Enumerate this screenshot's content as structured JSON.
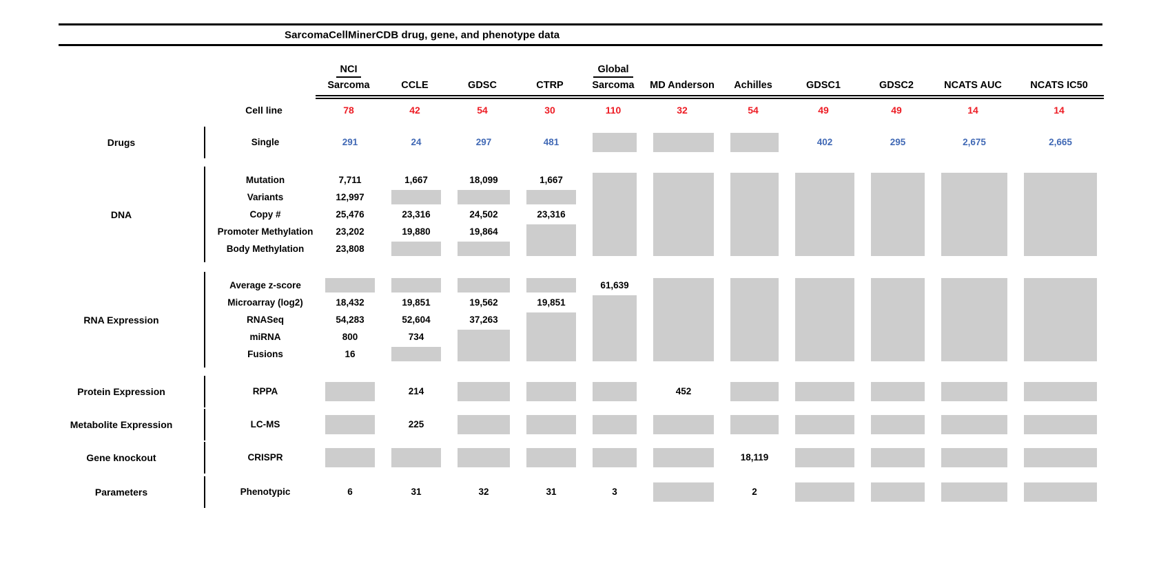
{
  "colors": {
    "cell_line_count": "#ed1c24",
    "drug_count": "#4169b5",
    "no_data_box": "#cdcdcd",
    "text": "#000000",
    "rule": "#000000"
  },
  "chart_data": {
    "type": "table",
    "title": "SarcomaCellMinerCDB drug, gene, and phenotype data",
    "cell_line_row_label": "Cell line",
    "columns": [
      {
        "id": "nci-sarcoma",
        "top": "NCI",
        "label": "Sarcoma",
        "cell_lines": "78"
      },
      {
        "id": "ccle",
        "label": "CCLE",
        "cell_lines": "42"
      },
      {
        "id": "gdsc",
        "label": "GDSC",
        "cell_lines": "54"
      },
      {
        "id": "ctrp",
        "label": "CTRP",
        "cell_lines": "30"
      },
      {
        "id": "global-sarcoma",
        "top": "Global",
        "label": "Sarcoma",
        "cell_lines": "110"
      },
      {
        "id": "md-anderson",
        "label": "MD Anderson",
        "cell_lines": "32"
      },
      {
        "id": "achilles",
        "label": "Achilles",
        "cell_lines": "54"
      },
      {
        "id": "gdsc1",
        "label": "GDSC1",
        "cell_lines": "49"
      },
      {
        "id": "gdsc2",
        "label": "GDSC2",
        "cell_lines": "49"
      },
      {
        "id": "ncats-auc",
        "label": "NCATS AUC",
        "cell_lines": "14"
      },
      {
        "id": "ncats-ic50",
        "label": "NCATS IC50",
        "cell_lines": "14"
      }
    ],
    "sections": [
      {
        "category": "Drugs",
        "value_color": "blue",
        "rows": [
          "Single"
        ],
        "cells": [
          [
            "291"
          ],
          [
            "24"
          ],
          [
            "297"
          ],
          [
            "481"
          ],
          [
            {
              "gray": 1
            }
          ],
          [
            {
              "gray": 1
            }
          ],
          [
            {
              "gray": 1
            }
          ],
          [
            "402"
          ],
          [
            "295"
          ],
          [
            "2,675"
          ],
          [
            "2,665"
          ]
        ]
      },
      {
        "category": "DNA",
        "rows": [
          "Mutation",
          "Variants",
          "Copy #",
          "Promoter Methylation",
          "Body Methylation"
        ],
        "cells": [
          [
            "7,711",
            "12,997",
            "25,476",
            "23,202",
            "23,808"
          ],
          [
            "1,667",
            {
              "gray": 1
            },
            "23,316",
            "19,880",
            {
              "gray": 1
            }
          ],
          [
            "18,099",
            {
              "gray": 1
            },
            "24,502",
            "19,864",
            {
              "gray": 1
            }
          ],
          [
            "1,667",
            {
              "gray": 1
            },
            "23,316",
            {
              "gray": 2
            }
          ],
          [
            {
              "gray": 5
            }
          ],
          [
            {
              "gray": 5
            }
          ],
          [
            {
              "gray": 5
            }
          ],
          [
            {
              "gray": 5
            }
          ],
          [
            {
              "gray": 5
            }
          ],
          [
            {
              "gray": 5
            }
          ],
          [
            {
              "gray": 5
            }
          ]
        ]
      },
      {
        "category": "RNA Expression",
        "rows": [
          "Average z-score",
          "Microarray (log2)",
          "RNASeq",
          "miRNA",
          "Fusions"
        ],
        "cells": [
          [
            {
              "gray": 1
            },
            "18,432",
            "54,283",
            "800",
            "16"
          ],
          [
            {
              "gray": 1
            },
            "19,851",
            "52,604",
            "734",
            {
              "gray": 1
            }
          ],
          [
            {
              "gray": 1
            },
            "19,562",
            "37,263",
            {
              "gray": 2
            }
          ],
          [
            {
              "gray": 1
            },
            "19,851",
            {
              "gray": 3
            }
          ],
          [
            "61,639",
            {
              "gray": 4
            }
          ],
          [
            {
              "gray": 5
            }
          ],
          [
            {
              "gray": 5
            }
          ],
          [
            {
              "gray": 5
            }
          ],
          [
            {
              "gray": 5
            }
          ],
          [
            {
              "gray": 5
            }
          ],
          [
            {
              "gray": 5
            }
          ]
        ]
      },
      {
        "category": "Protein Expression",
        "rows": [
          "RPPA"
        ],
        "cells": [
          [
            {
              "gray": 1
            }
          ],
          [
            "214"
          ],
          [
            {
              "gray": 1
            }
          ],
          [
            {
              "gray": 1
            }
          ],
          [
            {
              "gray": 1
            }
          ],
          [
            "452"
          ],
          [
            {
              "gray": 1
            }
          ],
          [
            {
              "gray": 1
            }
          ],
          [
            {
              "gray": 1
            }
          ],
          [
            {
              "gray": 1
            }
          ],
          [
            {
              "gray": 1
            }
          ]
        ]
      },
      {
        "category": "Metabolite Expression",
        "rows": [
          "LC-MS"
        ],
        "cells": [
          [
            {
              "gray": 1
            }
          ],
          [
            "225"
          ],
          [
            {
              "gray": 1
            }
          ],
          [
            {
              "gray": 1
            }
          ],
          [
            {
              "gray": 1
            }
          ],
          [
            {
              "gray": 1
            }
          ],
          [
            {
              "gray": 1
            }
          ],
          [
            {
              "gray": 1
            }
          ],
          [
            {
              "gray": 1
            }
          ],
          [
            {
              "gray": 1
            }
          ],
          [
            {
              "gray": 1
            }
          ]
        ]
      },
      {
        "category": "Gene knockout",
        "rows": [
          "CRISPR"
        ],
        "cells": [
          [
            {
              "gray": 1
            }
          ],
          [
            {
              "gray": 1
            }
          ],
          [
            {
              "gray": 1
            }
          ],
          [
            {
              "gray": 1
            }
          ],
          [
            {
              "gray": 1
            }
          ],
          [
            {
              "gray": 1
            }
          ],
          [
            "18,119"
          ],
          [
            {
              "gray": 1
            }
          ],
          [
            {
              "gray": 1
            }
          ],
          [
            {
              "gray": 1
            }
          ],
          [
            {
              "gray": 1
            }
          ]
        ]
      },
      {
        "category": "Parameters",
        "rows": [
          "Phenotypic"
        ],
        "cells": [
          [
            "6"
          ],
          [
            "31"
          ],
          [
            "32"
          ],
          [
            "31"
          ],
          [
            "3"
          ],
          [
            {
              "gray": 1
            }
          ],
          [
            "2"
          ],
          [
            {
              "gray": 1
            }
          ],
          [
            {
              "gray": 1
            }
          ],
          [
            {
              "gray": 1
            }
          ],
          [
            {
              "gray": 1
            }
          ]
        ]
      }
    ]
  }
}
